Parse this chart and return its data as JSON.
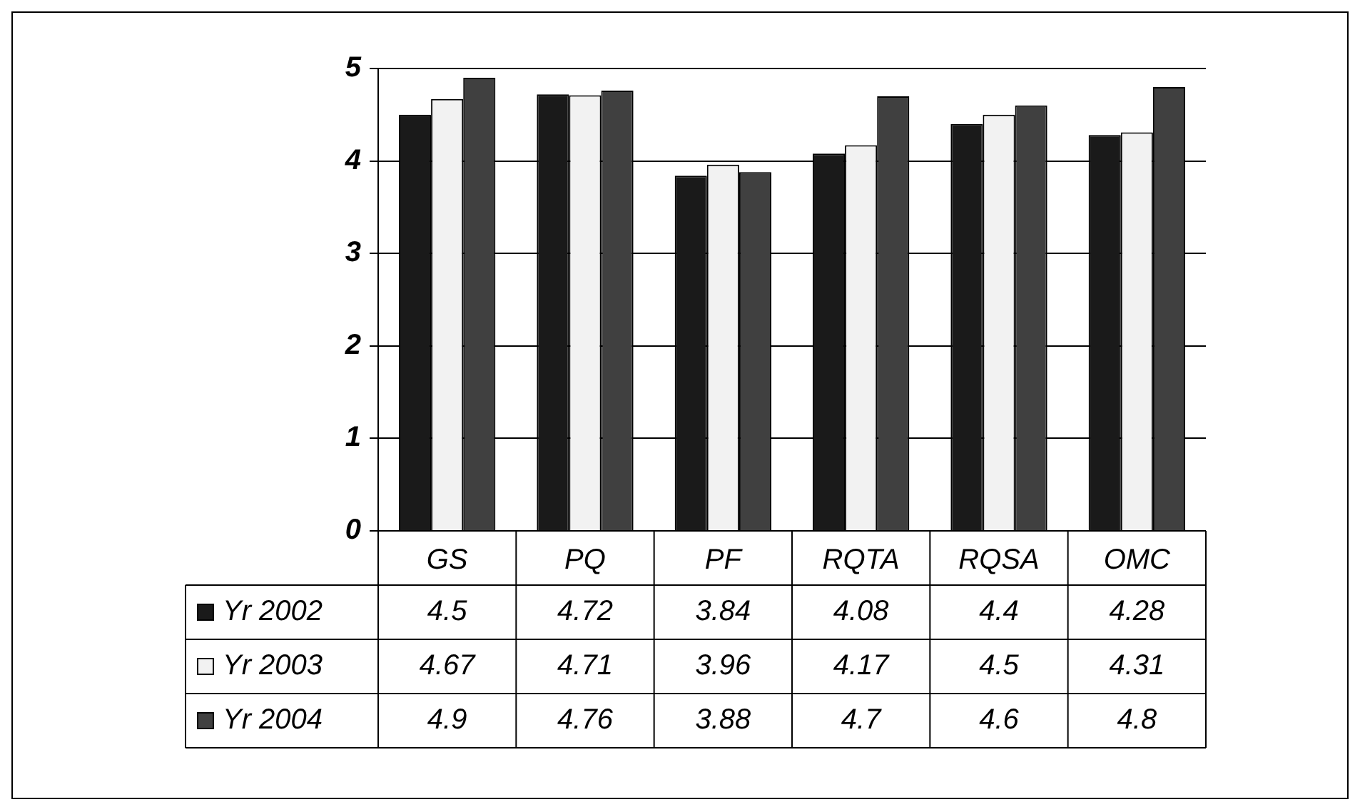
{
  "chart_data": {
    "type": "bar",
    "categories": [
      "GS",
      "PQ",
      "PF",
      "RQTA",
      "RQSA",
      "OMC"
    ],
    "series": [
      {
        "name": "Yr 2002",
        "color": "#1a1a1a",
        "values": [
          4.5,
          4.72,
          3.84,
          4.08,
          4.4,
          4.28
        ]
      },
      {
        "name": "Yr 2003",
        "color": "#f2f2f2",
        "values": [
          4.67,
          4.71,
          3.96,
          4.17,
          4.5,
          4.31
        ]
      },
      {
        "name": "Yr 2004",
        "color": "#404040",
        "values": [
          4.9,
          4.76,
          3.88,
          4.7,
          4.6,
          4.8
        ]
      }
    ],
    "ylim": [
      0,
      5
    ],
    "yticks": [
      0,
      1,
      2,
      3,
      4,
      5
    ],
    "grid": "y",
    "legend": "bottom",
    "data_labels": true
  }
}
